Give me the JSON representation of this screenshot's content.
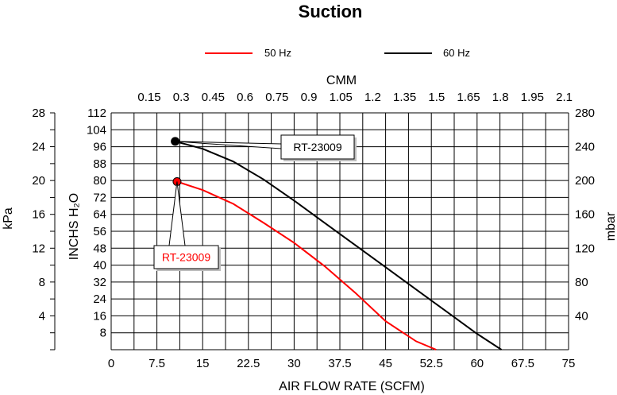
{
  "chart_data": {
    "type": "line",
    "title": "Suction",
    "xlabel": "AIR FLOW RATE (SCFM)",
    "x2label": "CMM",
    "ylabel": "INCHS H₂O",
    "ylabel_left_outer": "kPa",
    "ylabel_right": "mbar",
    "xlim": [
      0,
      75
    ],
    "ylim": [
      0,
      112
    ],
    "x_ticks": [
      "0",
      "7.5",
      "15",
      "22.5",
      "30",
      "37.5",
      "45",
      "52.5",
      "60",
      "67.5",
      "75"
    ],
    "x2_ticks": [
      "0.15",
      "0.3",
      "0.45",
      "0.6",
      "0.75",
      "0.9",
      "1.05",
      "1.2",
      "1.35",
      "1.5",
      "1.65",
      "1.8",
      "1.95",
      "2.1"
    ],
    "y_ticks": [
      "8",
      "16",
      "24",
      "32",
      "40",
      "48",
      "56",
      "64",
      "72",
      "80",
      "88",
      "96",
      "104",
      "112"
    ],
    "kpa_ticks": [
      "4",
      "8",
      "12",
      "16",
      "20",
      "24",
      "28"
    ],
    "mbar_ticks": [
      "40",
      "80",
      "120",
      "160",
      "200",
      "240",
      "280"
    ],
    "grid": true,
    "legend_position": "top",
    "series": [
      {
        "name": "50 Hz",
        "color": "#ff0000",
        "x": [
          10.8,
          15,
          20,
          25,
          30,
          35,
          40,
          45,
          50,
          53.3
        ],
        "y": [
          79.5,
          75.5,
          69,
          60,
          50.5,
          39.5,
          27,
          13.5,
          4,
          0
        ]
      },
      {
        "name": "60 Hz",
        "color": "#000000",
        "x": [
          10.5,
          15,
          20,
          25,
          30,
          35,
          40,
          45,
          50,
          55,
          60,
          64
        ],
        "y": [
          98.5,
          95,
          89,
          80.5,
          70.5,
          60,
          49.5,
          39,
          28.5,
          18,
          7.5,
          0
        ]
      }
    ],
    "annotations": [
      {
        "text": "RT-23009",
        "color": "#ff0000",
        "series": "50 Hz"
      },
      {
        "text": "RT-23009",
        "color": "#000000",
        "series": "60 Hz"
      }
    ]
  }
}
